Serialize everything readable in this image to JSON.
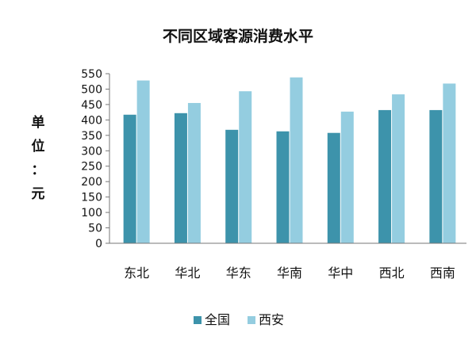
{
  "chart_data": {
    "type": "bar",
    "title": "不同区域客源消费水平",
    "ylabel": "单位：元",
    "xlabel": "",
    "categories": [
      "东北",
      "华北",
      "华东",
      "华南",
      "华中",
      "西北",
      "西南"
    ],
    "series": [
      {
        "name": "全国",
        "color": "#3d93ab",
        "values": [
          417,
          422,
          368,
          363,
          358,
          432,
          432
        ]
      },
      {
        "name": "西安",
        "color": "#94cde0",
        "values": [
          528,
          455,
          493,
          538,
          427,
          483,
          518
        ]
      }
    ],
    "ylim": [
      0,
      550
    ],
    "ytick_step": 50,
    "grid": false,
    "legend_position": "bottom"
  }
}
